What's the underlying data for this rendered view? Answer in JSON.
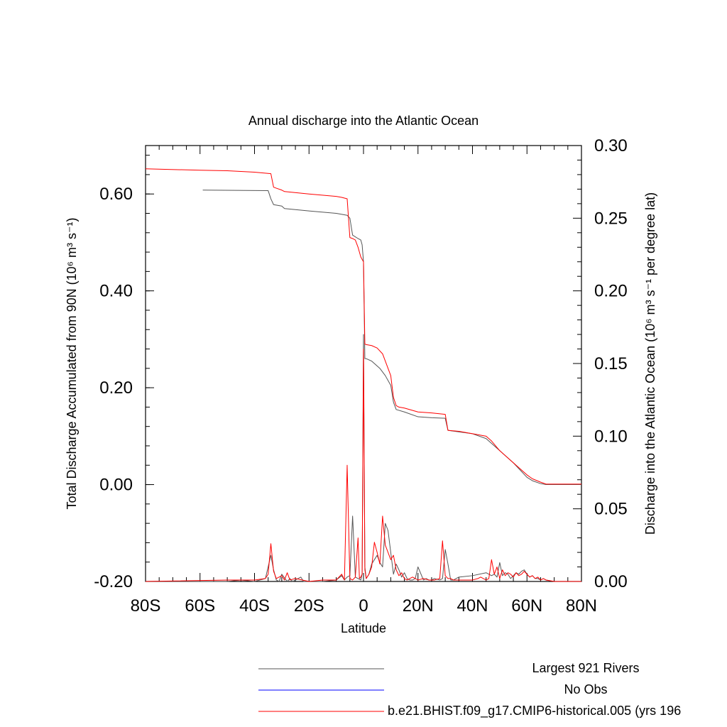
{
  "chart_data": {
    "type": "line",
    "title": "Annual discharge into the Atlantic Ocean",
    "xlabel": "Latitude",
    "ylabel_left": "Total Discharge Accumulated from 90N (10⁶ m³ s⁻¹)",
    "ylabel_right": "Discharge into the Atlantic Ocean (10⁶ m³ s⁻¹ per degree lat)",
    "xlim": [
      -80,
      80
    ],
    "ylim_left": [
      -0.2,
      0.7
    ],
    "ylim_right": [
      0.0,
      0.3
    ],
    "x_ticks": [
      {
        "value": -80,
        "label": "80S"
      },
      {
        "value": -60,
        "label": "60S"
      },
      {
        "value": -40,
        "label": "40S"
      },
      {
        "value": -20,
        "label": "20S"
      },
      {
        "value": 0,
        "label": "0"
      },
      {
        "value": 20,
        "label": "20N"
      },
      {
        "value": 40,
        "label": "40N"
      },
      {
        "value": 60,
        "label": "60N"
      },
      {
        "value": 80,
        "label": "80N"
      }
    ],
    "y_ticks_left": [
      {
        "value": -0.2,
        "label": "-0.20"
      },
      {
        "value": 0.0,
        "label": "0.00"
      },
      {
        "value": 0.2,
        "label": "0.20"
      },
      {
        "value": 0.4,
        "label": "0.40"
      },
      {
        "value": 0.6,
        "label": "0.60"
      }
    ],
    "y_ticks_right": [
      {
        "value": 0.0,
        "label": "0.00"
      },
      {
        "value": 0.05,
        "label": "0.05"
      },
      {
        "value": 0.1,
        "label": "0.10"
      },
      {
        "value": 0.15,
        "label": "0.15"
      },
      {
        "value": 0.2,
        "label": "0.20"
      },
      {
        "value": 0.25,
        "label": "0.25"
      },
      {
        "value": 0.3,
        "label": "0.30"
      }
    ],
    "series": [
      {
        "name": "Largest 921 Rivers",
        "color": "#555555",
        "accumulated": {
          "x": [
            -59,
            -35,
            -34,
            -33,
            -30,
            -29,
            -20,
            -10,
            -8,
            -6,
            -5,
            -4,
            -2,
            -1,
            -0.5,
            0,
            0.5,
            1,
            3,
            6,
            8,
            10,
            11,
            12,
            15,
            20,
            25,
            30,
            31,
            40,
            45,
            50,
            55,
            60,
            62,
            65,
            67,
            80
          ],
          "y": [
            0.608,
            0.607,
            0.59,
            0.578,
            0.575,
            0.57,
            0.565,
            0.56,
            0.558,
            0.556,
            0.55,
            0.515,
            0.508,
            0.505,
            0.495,
            0.46,
            0.26,
            0.26,
            0.255,
            0.24,
            0.225,
            0.205,
            0.17,
            0.155,
            0.15,
            0.14,
            0.138,
            0.137,
            0.112,
            0.105,
            0.095,
            0.07,
            0.045,
            0.015,
            0.008,
            0.002,
            0.0,
            0.0
          ]
        },
        "per_degree": {
          "x": [
            -80,
            -50,
            -45,
            -40,
            -36,
            -34,
            -33,
            -32,
            -31,
            -30,
            -28,
            -27,
            -26,
            -25,
            -23,
            -22,
            -20,
            -15,
            -10,
            -8,
            -7,
            -6,
            -5,
            -4,
            -3,
            -2,
            -1,
            -0.5,
            0,
            0.5,
            1,
            2,
            3,
            4,
            5,
            6,
            7,
            8,
            9,
            10,
            11,
            12,
            13,
            14,
            15,
            16,
            17,
            18,
            19,
            20,
            22,
            23,
            24,
            25,
            26,
            28,
            29,
            30,
            31,
            32,
            33,
            35,
            40,
            45,
            47,
            48,
            49,
            50,
            51,
            52,
            53,
            54,
            55,
            56,
            57,
            58,
            59,
            60,
            61,
            62,
            63,
            64,
            65,
            66,
            67,
            70,
            80
          ],
          "y": [
            0,
            0,
            0.001,
            0,
            0.002,
            0.018,
            0.008,
            0.001,
            0,
            0.005,
            0,
            0.002,
            0,
            0.001,
            0.003,
            0,
            0,
            0,
            0.001,
            0.004,
            0.001,
            0.003,
            0.004,
            0.045,
            0.003,
            0.002,
            0.001,
            0.005,
            0.17,
            0.01,
            0.002,
            0.005,
            0.012,
            0.015,
            0.018,
            0.013,
            0.01,
            0.04,
            0.035,
            0.02,
            0.005,
            0.012,
            0.008,
            0.003,
            0.006,
            0.002,
            0.001,
            0.001,
            0.002,
            0.01,
            0.001,
            0.002,
            0.001,
            0.001,
            0.002,
            0.001,
            0.002,
            0.022,
            0.012,
            0.001,
            0.001,
            0.003,
            0.004,
            0.006,
            0.004,
            0.005,
            0.003,
            0.013,
            0.004,
            0.006,
            0.005,
            0.002,
            0.004,
            0.006,
            0.005,
            0.007,
            0.008,
            0.005,
            0.003,
            0.004,
            0.002,
            0.002,
            0.001,
            0.002,
            0.001,
            0,
            0
          ]
        }
      },
      {
        "name": "No Obs",
        "color": "#0000ff",
        "accumulated": {
          "x": [],
          "y": []
        },
        "per_degree": {
          "x": [],
          "y": []
        }
      },
      {
        "name": "b.e21.BHIST.f09_g17.CMIP6-historical.005 (yrs 196",
        "color": "#ff0000",
        "accumulated": {
          "x": [
            -80,
            -60,
            -50,
            -40,
            -34,
            -33,
            -32,
            -30,
            -29,
            -20,
            -10,
            -8,
            -6,
            -5,
            -4,
            -3,
            -2,
            -1,
            -0.5,
            0,
            0.5,
            1,
            3,
            5,
            7,
            8,
            10,
            11,
            12,
            13,
            15,
            20,
            25,
            30,
            31,
            35,
            40,
            45,
            47,
            50,
            55,
            60,
            62,
            65,
            67,
            80
          ],
          "y": [
            0.652,
            0.649,
            0.648,
            0.645,
            0.642,
            0.614,
            0.612,
            0.608,
            0.605,
            0.6,
            0.595,
            0.593,
            0.59,
            0.51,
            0.508,
            0.505,
            0.49,
            0.47,
            0.465,
            0.46,
            0.29,
            0.289,
            0.287,
            0.282,
            0.27,
            0.255,
            0.225,
            0.18,
            0.163,
            0.16,
            0.158,
            0.15,
            0.148,
            0.145,
            0.112,
            0.11,
            0.105,
            0.1,
            0.09,
            0.07,
            0.045,
            0.02,
            0.012,
            0.005,
            0.001,
            0.001
          ]
        },
        "per_degree": {
          "x": [
            -80,
            -50,
            -40,
            -36,
            -35,
            -34,
            -33,
            -32,
            -30,
            -29,
            -28,
            -27,
            -25,
            -20,
            -15,
            -10,
            -8,
            -7,
            -6,
            -5,
            -4,
            -3,
            -2,
            -1.5,
            -1,
            -0.5,
            0,
            0.5,
            1,
            2,
            3,
            4,
            5,
            6,
            7,
            8,
            9,
            10,
            11,
            12,
            13,
            14,
            15,
            16,
            18,
            20,
            22,
            24,
            26,
            28,
            29,
            30,
            31,
            32,
            33,
            35,
            40,
            42,
            43,
            44,
            45,
            46,
            47,
            48,
            49,
            50,
            51,
            52,
            53,
            54,
            55,
            56,
            57,
            58,
            59,
            60,
            61,
            62,
            63,
            64,
            65,
            66,
            67,
            70,
            80
          ],
          "y": [
            0,
            0.001,
            0.001,
            0.002,
            0.005,
            0.026,
            0.007,
            0.002,
            0.004,
            0.001,
            0.006,
            0.001,
            0.002,
            0,
            0.001,
            0.001,
            0.005,
            0.001,
            0.08,
            0.002,
            0.001,
            0.003,
            0.03,
            0.002,
            0.003,
            0.005,
            0.16,
            0.008,
            0.002,
            0.005,
            0.01,
            0.027,
            0.02,
            0.012,
            0.045,
            0.025,
            0.02,
            0.015,
            0.018,
            0.008,
            0.004,
            0.006,
            0.002,
            0.001,
            0.003,
            0.001,
            0.002,
            0.001,
            0.001,
            0.002,
            0.028,
            0.004,
            0.002,
            0.002,
            0.001,
            0.001,
            0.001,
            0.002,
            0.003,
            0.002,
            0.001,
            0.002,
            0.015,
            0.005,
            0.01,
            0.002,
            0.008,
            0.004,
            0.006,
            0.005,
            0.003,
            0.006,
            0.004,
            0.005,
            0.007,
            0.005,
            0.003,
            0.004,
            0.002,
            0.003,
            0.001,
            0.002,
            0.001,
            0,
            0
          ]
        }
      }
    ],
    "legend_position": "bottom"
  }
}
